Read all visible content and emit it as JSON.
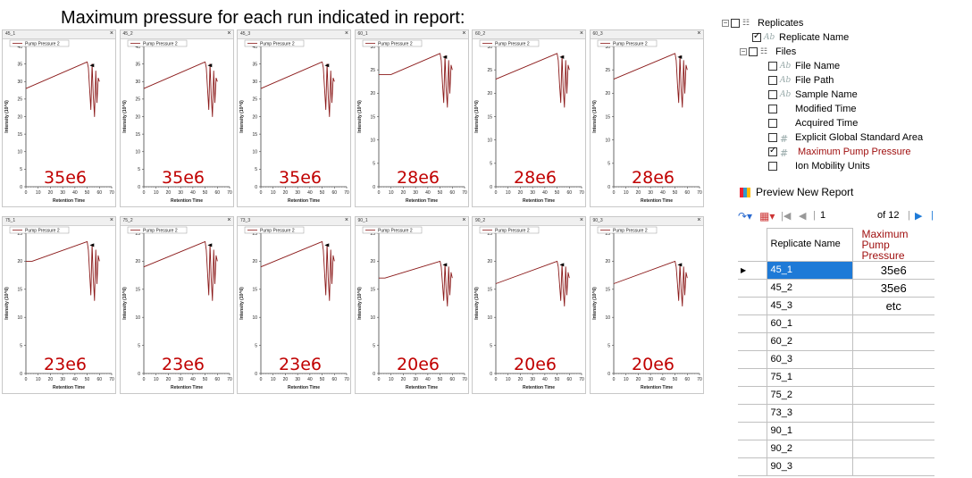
{
  "heading": "Maximum pressure for each run indicated in report:",
  "colors": {
    "trace": "#8b1a1a",
    "annotation": "#c00000",
    "selection": "#1e7ad7"
  },
  "panels": [
    {
      "title": "45_1",
      "value": "35e6"
    },
    {
      "title": "45_2",
      "value": "35e6"
    },
    {
      "title": "45_3",
      "value": "35e6"
    },
    {
      "title": "60_1",
      "value": "28e6"
    },
    {
      "title": "60_2",
      "value": "28e6"
    },
    {
      "title": "60_3",
      "value": "28e6"
    },
    {
      "title": "75_1",
      "value": "23e6"
    },
    {
      "title": "75_2",
      "value": "23e6"
    },
    {
      "title": "73_3",
      "value": "23e6"
    },
    {
      "title": "90_1",
      "value": "20e6"
    },
    {
      "title": "90_2",
      "value": "20e6"
    },
    {
      "title": "90_3",
      "value": "20e6"
    }
  ],
  "chart_common": {
    "legend": "Pump Pressure 2",
    "xlabel": "Retention Time",
    "ylabel": "Intensity (10^6)",
    "x_ticks": [
      "0",
      "10",
      "20",
      "30",
      "40",
      "50",
      "60",
      "70"
    ],
    "close_glyph": "×"
  },
  "chart_data": [
    {
      "type": "line",
      "title": "45_1",
      "ylim": [
        0,
        40
      ],
      "y_ticks": [
        "0",
        "5",
        "10",
        "15",
        "20",
        "25",
        "30",
        "35",
        "40"
      ],
      "x": [
        0,
        50,
        51,
        52,
        53,
        54,
        55,
        56,
        57,
        58,
        59,
        60
      ],
      "values": [
        28,
        35.6,
        34,
        28,
        22,
        35,
        26,
        20,
        33,
        24,
        31,
        30
      ]
    },
    {
      "type": "line",
      "title": "45_2",
      "ylim": [
        0,
        40
      ],
      "y_ticks": [
        "0",
        "5",
        "10",
        "15",
        "20",
        "25",
        "30",
        "35",
        "40"
      ],
      "x": [
        0,
        50,
        51,
        52,
        53,
        54,
        55,
        56,
        57,
        58,
        59,
        60
      ],
      "values": [
        28,
        35.6,
        34,
        28,
        22,
        35,
        26,
        20,
        33,
        24,
        31,
        30
      ]
    },
    {
      "type": "line",
      "title": "45_3",
      "ylim": [
        0,
        40
      ],
      "y_ticks": [
        "0",
        "5",
        "10",
        "15",
        "20",
        "25",
        "30",
        "35",
        "40"
      ],
      "x": [
        0,
        50,
        51,
        52,
        53,
        54,
        55,
        56,
        57,
        58,
        59,
        60
      ],
      "values": [
        28,
        35.6,
        34,
        28,
        22,
        35,
        26,
        20,
        33,
        24,
        31,
        30
      ]
    },
    {
      "type": "line",
      "title": "60_1",
      "ylim": [
        0,
        30
      ],
      "y_ticks": [
        "0",
        "5",
        "10",
        "15",
        "20",
        "25",
        "30"
      ],
      "x": [
        0,
        10,
        50,
        51,
        52,
        53,
        54,
        55,
        56,
        57,
        58,
        59,
        60
      ],
      "values": [
        24,
        24,
        28.5,
        27,
        22,
        18,
        28,
        21,
        17,
        27,
        20,
        26,
        25
      ]
    },
    {
      "type": "line",
      "title": "60_2",
      "ylim": [
        0,
        30
      ],
      "y_ticks": [
        "0",
        "5",
        "10",
        "15",
        "20",
        "25",
        "30"
      ],
      "x": [
        0,
        50,
        51,
        52,
        53,
        54,
        55,
        56,
        57,
        58,
        59,
        60
      ],
      "values": [
        23,
        28.5,
        27,
        22,
        18,
        28,
        21,
        17,
        27,
        20,
        26,
        25
      ]
    },
    {
      "type": "line",
      "title": "60_3",
      "ylim": [
        0,
        30
      ],
      "y_ticks": [
        "0",
        "5",
        "10",
        "15",
        "20",
        "25",
        "30"
      ],
      "x": [
        0,
        50,
        51,
        52,
        53,
        54,
        55,
        56,
        57,
        58,
        59,
        60
      ],
      "values": [
        23,
        28.5,
        27,
        22,
        18,
        28,
        21,
        17,
        27,
        20,
        26,
        25
      ]
    },
    {
      "type": "line",
      "title": "75_1",
      "ylim": [
        0,
        25
      ],
      "y_ticks": [
        "0",
        "5",
        "10",
        "15",
        "20",
        "25"
      ],
      "x": [
        0,
        5,
        50,
        51,
        52,
        53,
        54,
        55,
        56,
        57,
        58,
        59,
        60
      ],
      "values": [
        20,
        20,
        23.5,
        22,
        18,
        14,
        23,
        17,
        13,
        22,
        16,
        21,
        20
      ]
    },
    {
      "type": "line",
      "title": "75_2",
      "ylim": [
        0,
        25
      ],
      "y_ticks": [
        "0",
        "5",
        "10",
        "15",
        "20",
        "25"
      ],
      "x": [
        0,
        50,
        51,
        52,
        53,
        54,
        55,
        56,
        57,
        58,
        59,
        60
      ],
      "values": [
        19,
        23.5,
        22,
        18,
        14,
        23,
        17,
        13,
        22,
        16,
        21,
        20
      ]
    },
    {
      "type": "line",
      "title": "73_3",
      "ylim": [
        0,
        25
      ],
      "y_ticks": [
        "0",
        "5",
        "10",
        "15",
        "20",
        "25"
      ],
      "x": [
        0,
        50,
        51,
        52,
        53,
        54,
        55,
        56,
        57,
        58,
        59,
        60
      ],
      "values": [
        19,
        23.5,
        22,
        18,
        14,
        23,
        17,
        13,
        22,
        16,
        21,
        20
      ]
    },
    {
      "type": "line",
      "title": "90_1",
      "ylim": [
        0,
        25
      ],
      "y_ticks": [
        "0",
        "5",
        "10",
        "15",
        "20",
        "25"
      ],
      "x": [
        0,
        5,
        50,
        51,
        52,
        53,
        54,
        55,
        56,
        57,
        58,
        59,
        60
      ],
      "values": [
        17,
        17,
        20,
        19,
        16,
        13,
        19.5,
        15,
        12,
        19,
        14,
        18,
        17
      ]
    },
    {
      "type": "line",
      "title": "90_2",
      "ylim": [
        0,
        25
      ],
      "y_ticks": [
        "0",
        "5",
        "10",
        "15",
        "20",
        "25"
      ],
      "x": [
        0,
        50,
        51,
        52,
        53,
        54,
        55,
        56,
        57,
        58,
        59,
        60
      ],
      "values": [
        16,
        20,
        19,
        16,
        13,
        19.5,
        15,
        12,
        19,
        14,
        18,
        17
      ]
    },
    {
      "type": "line",
      "title": "90_3",
      "ylim": [
        0,
        25
      ],
      "y_ticks": [
        "0",
        "5",
        "10",
        "15",
        "20",
        "25"
      ],
      "x": [
        0,
        50,
        51,
        52,
        53,
        54,
        55,
        56,
        57,
        58,
        59,
        60
      ],
      "values": [
        16,
        20,
        19,
        16,
        13,
        19.5,
        15,
        12,
        19,
        14,
        18,
        17
      ]
    }
  ],
  "tree": {
    "root": "Replicates",
    "replicate_name": "Replicate Name",
    "files": "Files",
    "items": [
      "File Name",
      "File Path",
      "Sample Name",
      "Modified Time",
      "Acquired Time",
      "Explicit Global Standard Area",
      "Maximum Pump Pressure",
      "Ion Mobility Units"
    ],
    "checked": [
      "Replicate Name",
      "Maximum Pump Pressure"
    ]
  },
  "preview": {
    "link": "Preview New Report",
    "page_current": "1",
    "page_total": "of 12"
  },
  "report": {
    "headers": [
      "Replicate Name",
      "Maximum Pump Pressure"
    ],
    "rows": [
      {
        "name": "45_1",
        "value": "35e6"
      },
      {
        "name": "45_2",
        "value": "35e6"
      },
      {
        "name": "45_3",
        "value": "etc"
      },
      {
        "name": "60_1",
        "value": ""
      },
      {
        "name": "60_2",
        "value": ""
      },
      {
        "name": "60_3",
        "value": ""
      },
      {
        "name": "75_1",
        "value": ""
      },
      {
        "name": "75_2",
        "value": ""
      },
      {
        "name": "73_3",
        "value": ""
      },
      {
        "name": "90_1",
        "value": ""
      },
      {
        "name": "90_2",
        "value": ""
      },
      {
        "name": "90_3",
        "value": ""
      }
    ]
  }
}
